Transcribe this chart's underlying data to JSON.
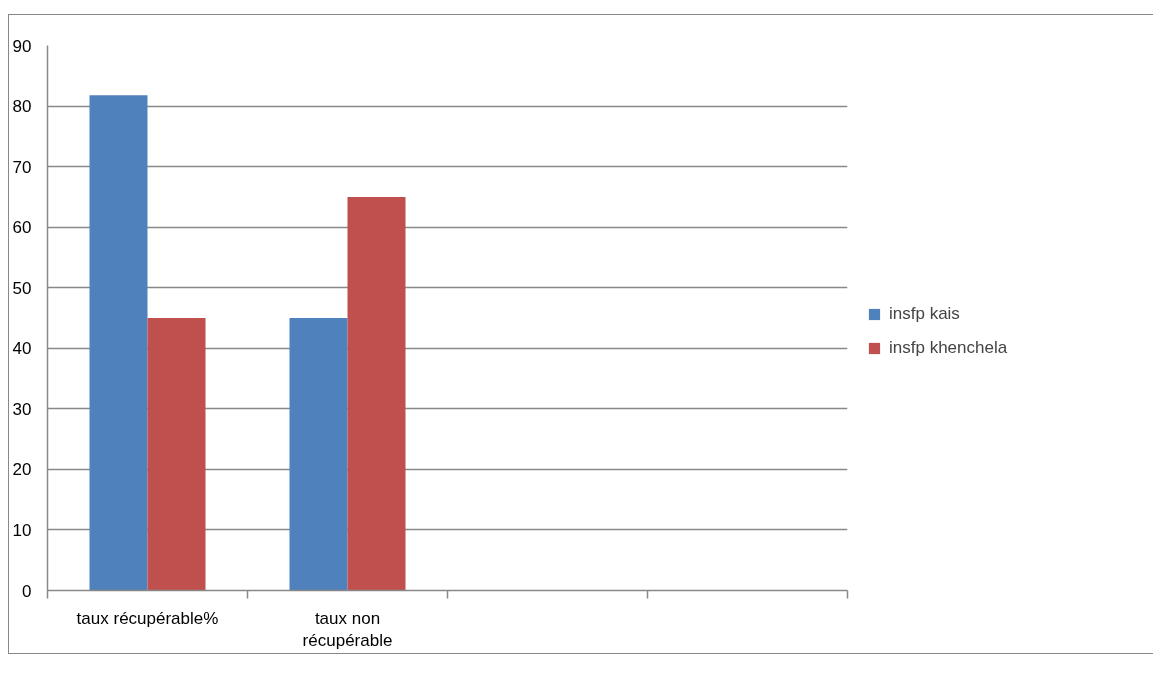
{
  "chart_data": {
    "type": "bar",
    "categories": [
      "taux récupérable%",
      "taux non récupérable",
      null,
      null
    ],
    "series": [
      {
        "name": "insfp kais",
        "color": "#4f81bd",
        "values": [
          81.8,
          45,
          null,
          null
        ]
      },
      {
        "name": "insfp khenchela",
        "color": "#c0504d",
        "values": [
          45,
          65,
          null,
          null
        ]
      }
    ],
    "ylim": [
      0,
      90
    ],
    "yticks": [
      0,
      10,
      20,
      30,
      40,
      50,
      60,
      70,
      80,
      90
    ],
    "grid": "y",
    "legend": "right"
  }
}
